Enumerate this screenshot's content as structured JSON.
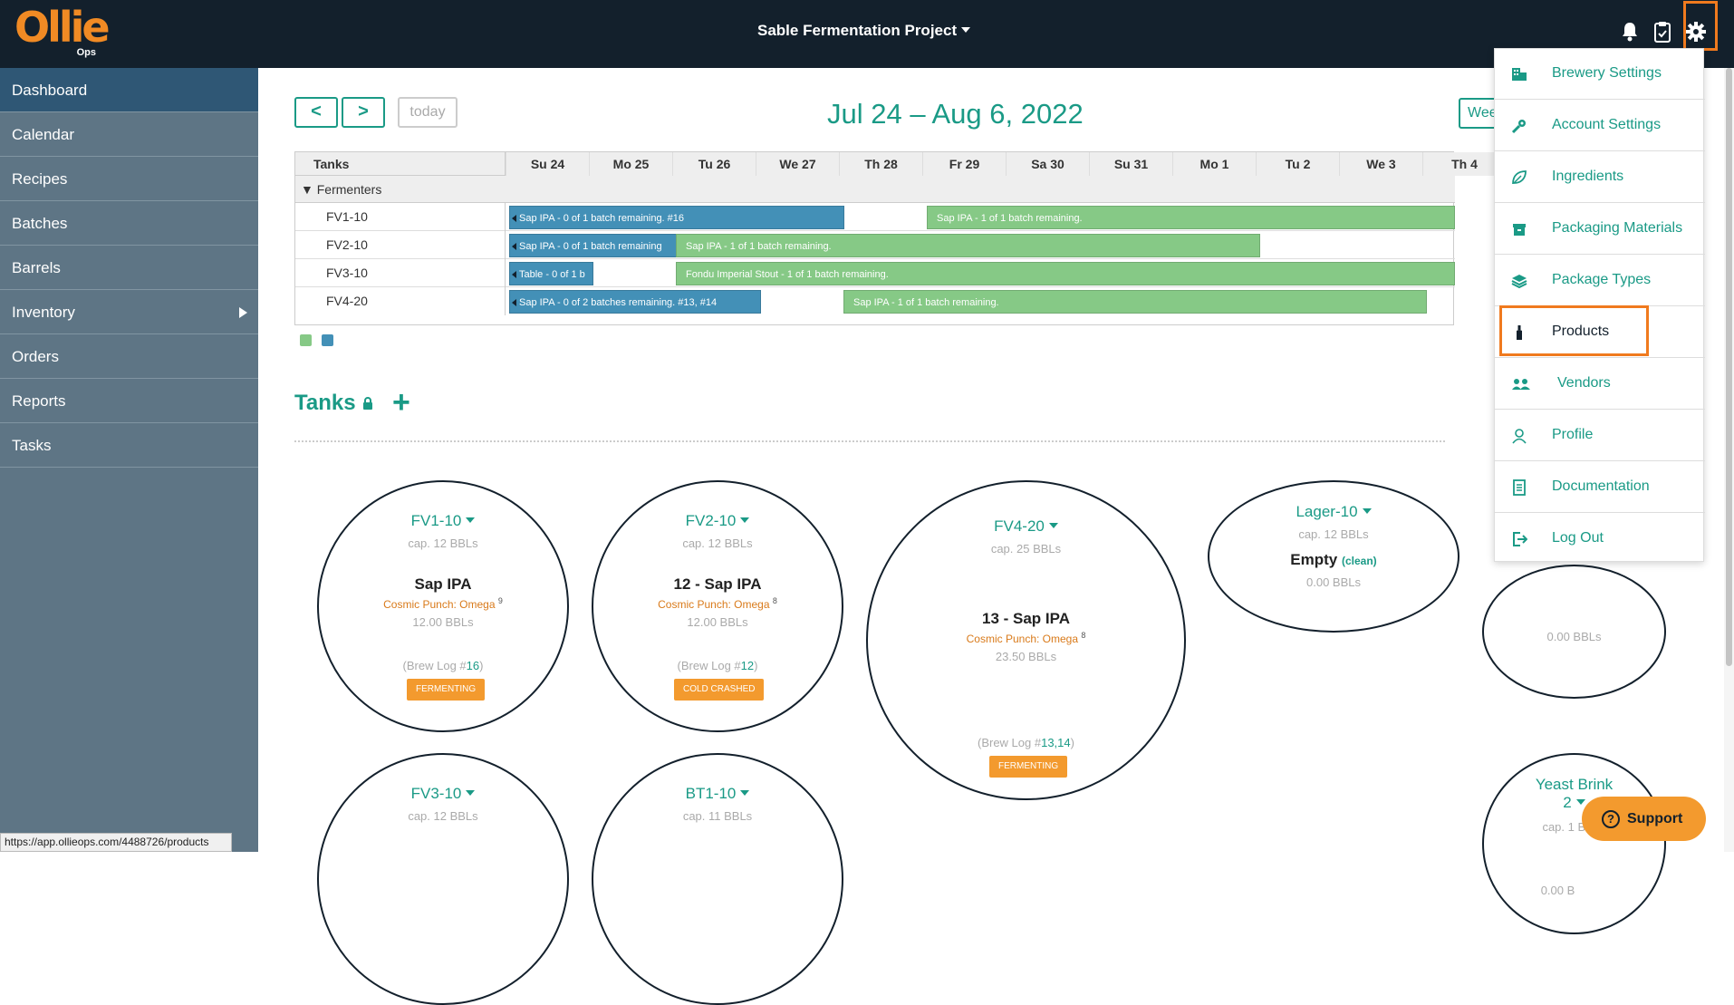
{
  "app": {
    "logo_text": "Ollie",
    "logo_sub": "Ops",
    "project_name": "Sable Fermentation Project"
  },
  "sidebar": {
    "items": [
      {
        "label": "Dashboard"
      },
      {
        "label": "Calendar"
      },
      {
        "label": "Recipes"
      },
      {
        "label": "Batches"
      },
      {
        "label": "Barrels"
      },
      {
        "label": "Inventory"
      },
      {
        "label": "Orders"
      },
      {
        "label": "Reports"
      },
      {
        "label": "Tasks"
      }
    ],
    "active": "Dashboard"
  },
  "status_url": "https://app.ollieops.com/4488726/products",
  "calendar": {
    "prev_label": "<",
    "next_label": ">",
    "today_label": "today",
    "date_range": "Jul 24 – Aug 6, 2022",
    "view_label": "Wee",
    "resource_header": "Tanks",
    "days": [
      "Su 24",
      "Mo 25",
      "Tu 26",
      "We 27",
      "Th 28",
      "Fr 29",
      "Sa 30",
      "Su 31",
      "Mo 1",
      "Tu 2",
      "We 3",
      "Th 4"
    ],
    "group_label": "Fermenters",
    "rows": [
      {
        "tank": "FV1-10",
        "events": [
          "Sap IPA - 0 of 1 batch remaining. #16",
          "Sap IPA - 1 of 1 batch remaining."
        ]
      },
      {
        "tank": "FV2-10",
        "events": [
          "Sap IPA - 0 of 1 batch remaining",
          "Sap IPA - 1 of 1 batch remaining."
        ]
      },
      {
        "tank": "FV3-10",
        "events": [
          "Table - 0 of 1 b",
          "Fondu Imperial Stout - 1 of 1 batch remaining."
        ]
      },
      {
        "tank": "FV4-20",
        "events": [
          "Sap IPA - 0 of 2 batches remaining. #13, #14",
          "Sap IPA - 1 of 1 batch remaining."
        ]
      }
    ],
    "legend_colors": {
      "green": "#86c986",
      "blue": "#4390b7"
    }
  },
  "tanks_section": {
    "title": "Tanks",
    "add_label": "+"
  },
  "tanks": [
    {
      "name": "FV1-10",
      "cap": "cap. 12 BBLs",
      "beer": "Sap IPA",
      "yeast": "Cosmic Punch: Omega",
      "gen": "9",
      "vol": "12.00 BBLs",
      "log_prefix": "(Brew Log #",
      "log_num": "16",
      "log_suffix": ")",
      "badge": "FERMENTING"
    },
    {
      "name": "FV2-10",
      "cap": "cap. 12 BBLs",
      "beer": "12 - Sap IPA",
      "yeast": "Cosmic Punch: Omega",
      "gen": "8",
      "vol": "12.00 BBLs",
      "log_prefix": "(Brew Log #",
      "log_num": "12",
      "log_suffix": ")",
      "badge": "COLD CRASHED"
    },
    {
      "name": "FV4-20",
      "cap": "cap. 25 BBLs",
      "beer": "13 - Sap IPA",
      "yeast": "Cosmic Punch: Omega",
      "gen": "8",
      "vol": "23.50 BBLs",
      "log_prefix": "(Brew Log #",
      "log_num": "13,14",
      "log_suffix": ")",
      "badge": "FERMENTING"
    },
    {
      "name": "Lager-10",
      "cap": "cap. 12 BBLs",
      "beer": "Empty",
      "clean": "(clean)",
      "vol": "0.00 BBLs"
    },
    {
      "name": "",
      "vol": "0.00 BBLs"
    },
    {
      "name": "Yeast Brink",
      "name2": "2",
      "cap": "cap. 1 BBLs",
      "vol": "0.00 B"
    },
    {
      "name": "FV3-10",
      "cap": "cap. 12 BBLs"
    },
    {
      "name": "BT1-10",
      "cap": "cap. 11 BBLs"
    }
  ],
  "settings_menu": {
    "items": [
      {
        "label": "Brewery Settings",
        "icon": "building-icon"
      },
      {
        "label": "Account Settings",
        "icon": "key-icon"
      },
      {
        "label": "Ingredients",
        "icon": "leaf-icon"
      },
      {
        "label": "Packaging Materials",
        "icon": "box-icon"
      },
      {
        "label": "Package Types",
        "icon": "layers-icon"
      },
      {
        "label": "Products",
        "icon": "bottle-icon"
      },
      {
        "label": "Vendors",
        "icon": "users-icon"
      },
      {
        "label": "Profile",
        "icon": "user-icon"
      },
      {
        "label": "Documentation",
        "icon": "document-icon"
      },
      {
        "label": "Log Out",
        "icon": "logout-icon"
      }
    ],
    "highlighted": "Products"
  },
  "support": {
    "label": "Support"
  },
  "colors": {
    "accent": "#1a9a86",
    "brand": "#f08a24",
    "topbar": "#13202c",
    "sidebar": "#5e7585",
    "highlight": "#f07a1e"
  }
}
